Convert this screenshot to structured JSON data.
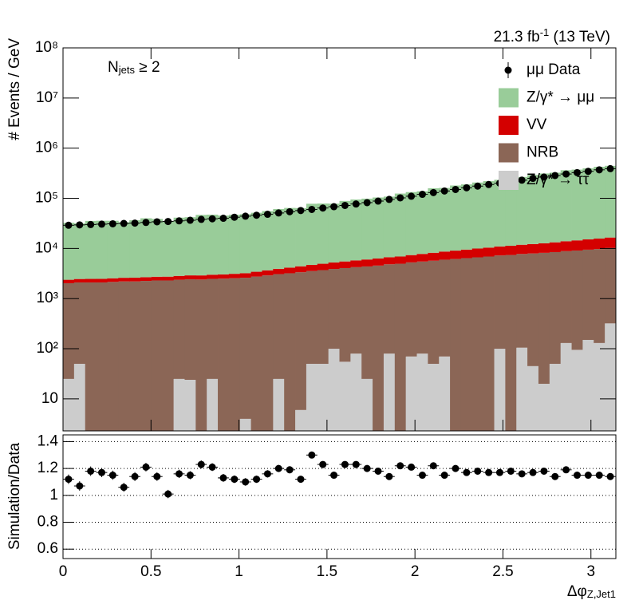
{
  "chart_data": [
    {
      "type": "histogram",
      "ylabel": "# Events / GeV",
      "annotations": [
        [
          {
            "text": "21.3 fb"
          },
          {
            "text": "-1",
            "sup": true
          },
          {
            "text": " (13 TeV)"
          }
        ],
        [
          {
            "text": "N"
          },
          {
            "text": "jets",
            "sub": true
          },
          {
            "text": " ≥ 2"
          }
        ]
      ],
      "log_y": true,
      "ylim": [
        2.3,
        100000000
      ],
      "yticks": [
        10,
        {
          "value": 100,
          "label": "10²"
        },
        {
          "value": 1000,
          "label": "10³"
        },
        {
          "value": 10000,
          "label": "10⁴"
        },
        {
          "value": 100000,
          "label": "10⁵"
        },
        {
          "value": 1000000,
          "label": "10⁶"
        },
        {
          "value": 10000000,
          "label": "10⁷"
        },
        {
          "value": 100000000,
          "label": "10⁸"
        }
      ],
      "xlim": [
        0,
        3.1416
      ],
      "legend": "upper right",
      "bins": [
        0,
        0.0628,
        0.1257,
        0.1885,
        0.2513,
        0.3142,
        0.377,
        0.4398,
        0.5027,
        0.5655,
        0.6283,
        0.6912,
        0.754,
        0.8168,
        0.8796,
        0.9425,
        1.0053,
        1.0681,
        1.131,
        1.1938,
        1.2566,
        1.3195,
        1.3823,
        1.4451,
        1.508,
        1.5708,
        1.6336,
        1.6965,
        1.7593,
        1.8221,
        1.885,
        1.9478,
        2.0106,
        2.0735,
        2.1363,
        2.1991,
        2.2619,
        2.3248,
        2.3876,
        2.4504,
        2.5133,
        2.5761,
        2.6389,
        2.7018,
        2.7646,
        2.8274,
        2.8903,
        2.9531,
        3.0159,
        3.0788,
        3.1416
      ],
      "series": [
        {
          "name": "μμ Data",
          "marker": "point",
          "color": "#000000",
          "values": [
            29000,
            29500,
            30000,
            30500,
            31000,
            31500,
            32000,
            33000,
            34000,
            34500,
            35500,
            36500,
            38000,
            39000,
            40000,
            42000,
            44000,
            46000,
            48000,
            51000,
            54000,
            57000,
            60000,
            64000,
            68000,
            72000,
            77000,
            82000,
            88000,
            95000,
            102000,
            110000,
            120000,
            130000,
            140000,
            150000,
            162000,
            175000,
            188000,
            200000,
            215000,
            230000,
            250000,
            265000,
            285000,
            305000,
            325000,
            345000,
            370000,
            390000
          ]
        },
        {
          "name": "Z/γ* → μμ",
          "color": "#99cc99",
          "values": [
            30100,
            29100,
            32900,
            33200,
            33100,
            30800,
            33900,
            37300,
            36000,
            32100,
            38300,
            39100,
            43800,
            44200,
            42200,
            43900,
            45200,
            48100,
            52000,
            57200,
            60100,
            59400,
            73200,
            73700,
            73000,
            83100,
            88900,
            92400,
            97500,
            101600,
            117500,
            125700,
            130200,
            150400,
            152300,
            171000,
            180000,
            196500,
            209600,
            223000,
            242400,
            255000,
            280300,
            300000,
            311600,
            349000,
            359200,
            381600,
            409800,
            428100
          ]
        },
        {
          "name": "VV",
          "color": "#d40000",
          "values": [
            350,
            360,
            370,
            380,
            390,
            400,
            410,
            420,
            430,
            440,
            460,
            480,
            500,
            520,
            540,
            570,
            600,
            680,
            760,
            850,
            950,
            1050,
            1150,
            1250,
            1350,
            1450,
            1550,
            1650,
            1750,
            1850,
            1950,
            2100,
            2300,
            2500,
            2700,
            2900,
            3100,
            3300,
            3500,
            3700,
            3900,
            4100,
            4300,
            4500,
            4800,
            5100,
            5400,
            5700,
            6000,
            6300
          ]
        },
        {
          "name": "NRB",
          "color": "#8b6656",
          "values": [
            2000,
            2050,
            2100,
            2100,
            2150,
            2200,
            2200,
            2250,
            2300,
            2300,
            2350,
            2400,
            2400,
            2450,
            2500,
            2550,
            2600,
            2750,
            2900,
            3050,
            3200,
            3350,
            3500,
            3650,
            3800,
            4000,
            4150,
            4350,
            4550,
            4750,
            4950,
            5200,
            5400,
            5650,
            5900,
            6150,
            6400,
            6650,
            6900,
            7150,
            7400,
            7650,
            7900,
            8150,
            8400,
            8700,
            9000,
            9300,
            9600,
            9900
          ]
        },
        {
          "name": "Z/γ* → ττ",
          "color": "#cccccc",
          "values": [
            25,
            50,
            0,
            0,
            0,
            0,
            0,
            0,
            0,
            0,
            25,
            24,
            0,
            25,
            0,
            0,
            4,
            0,
            0,
            25,
            0,
            6,
            50,
            50,
            100,
            55,
            80,
            25,
            0,
            80,
            0,
            70,
            80,
            50,
            70,
            0,
            0,
            0,
            0,
            100,
            0,
            105,
            45,
            20,
            50,
            130,
            95,
            150,
            130,
            320
          ]
        }
      ]
    },
    {
      "type": "scatter",
      "ylabel": "Simulation/Data",
      "xlabel": [
        {
          "text": "Δφ"
        },
        {
          "text": "Z,Jet1",
          "sub": true
        }
      ],
      "xlim": [
        0,
        3.1416
      ],
      "xticks": [
        0,
        0.5,
        1,
        1.5,
        2,
        2.5,
        3
      ],
      "ylim": [
        0.53,
        1.45
      ],
      "yticks": [
        0.6,
        0.8,
        1,
        1.2,
        1.4
      ],
      "grid": true,
      "color": "#000000",
      "values": [
        1.12,
        1.07,
        1.18,
        1.17,
        1.15,
        1.06,
        1.14,
        1.21,
        1.14,
        1.01,
        1.16,
        1.15,
        1.23,
        1.21,
        1.13,
        1.12,
        1.1,
        1.12,
        1.16,
        1.2,
        1.19,
        1.12,
        1.3,
        1.23,
        1.15,
        1.23,
        1.23,
        1.2,
        1.18,
        1.14,
        1.22,
        1.21,
        1.15,
        1.22,
        1.15,
        1.2,
        1.17,
        1.18,
        1.17,
        1.17,
        1.18,
        1.16,
        1.17,
        1.18,
        1.14,
        1.19,
        1.15,
        1.15,
        1.15,
        1.14
      ],
      "errors": [
        0.035,
        0.035,
        0.035,
        0.034,
        0.034,
        0.033,
        0.033,
        0.032,
        0.032,
        0.031,
        0.031,
        0.03,
        0.03,
        0.029,
        0.029,
        0.028,
        0.028,
        0.027,
        0.027,
        0.026,
        0.026,
        0.025,
        0.025,
        0.024,
        0.024,
        0.023,
        0.023,
        0.022,
        0.022,
        0.021,
        0.021,
        0.02,
        0.02,
        0.019,
        0.019,
        0.018,
        0.018,
        0.018,
        0.017,
        0.017,
        0.017,
        0.016,
        0.016,
        0.016,
        0.015,
        0.015,
        0.015,
        0.015,
        0.015,
        0.015
      ]
    }
  ]
}
